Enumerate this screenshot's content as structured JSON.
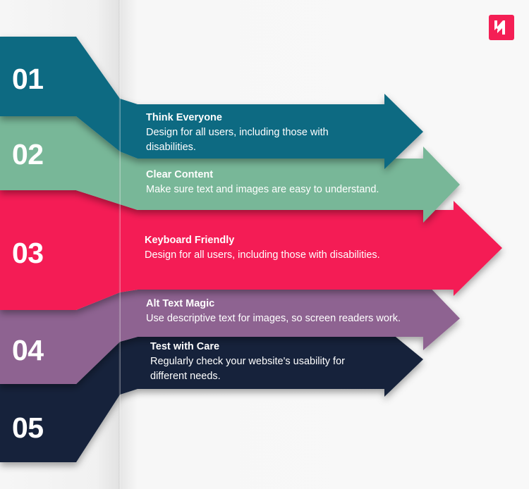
{
  "brand": {
    "logo": "KM",
    "color": "#f41f55"
  },
  "steps": [
    {
      "number": "01",
      "title": "Think Everyone",
      "description": "Design for all users, including those with disabilities.",
      "color": "#0f6b82"
    },
    {
      "number": "02",
      "title": "Clear Content",
      "description": "Make sure text and images are easy to understand.",
      "color": "#78b798"
    },
    {
      "number": "03",
      "title": "Keyboard Friendly",
      "description": "Design for all users, including those with disabilities.",
      "color": "#f41f55"
    },
    {
      "number": "04",
      "title": "Alt Text Magic",
      "description": "Use descriptive text for images, so screen readers work.",
      "color": "#8e6391"
    },
    {
      "number": "05",
      "title": "Test with Care",
      "description": "Regularly check your website's usability for different needs.",
      "color": "#12213a"
    }
  ]
}
